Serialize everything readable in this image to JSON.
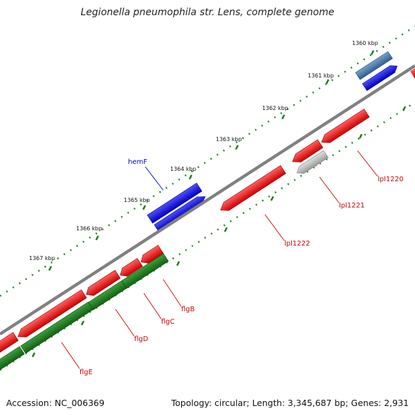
{
  "title": "Legionella pneumophila str. Lens, complete genome",
  "footer": {
    "accession": "Accession: NC_006369",
    "summary": "Topology: circular; Length: 3,345,687 bp; Genes: 2,931"
  },
  "colors": {
    "backbone": "#808080",
    "plus_gene": "#0000ee",
    "plus_gene_alt": "#4a7aa8",
    "minus_gene": "#ee0000",
    "minus_gene_alt": "#bdbdbd",
    "operon_gene": "#228b22",
    "tick_dots": "#228b22",
    "label_red": "#cc0000",
    "label_blue": "#0000cc"
  },
  "ticks": [
    {
      "label": "1360 kbp"
    },
    {
      "label": "1361 kbp"
    },
    {
      "label": "1362 kbp"
    },
    {
      "label": "1363 kbp"
    },
    {
      "label": "1364 kbp"
    },
    {
      "label": "1365 kbp"
    },
    {
      "label": "1366 kbp"
    },
    {
      "label": "1367 kbp"
    }
  ],
  "gene_labels": [
    {
      "name": "hemF"
    },
    {
      "name": "lpl1220"
    },
    {
      "name": "lpl1221"
    },
    {
      "name": "lpl1222"
    },
    {
      "name": "flgB"
    },
    {
      "name": "flgC"
    },
    {
      "name": "flgD"
    },
    {
      "name": "flgE"
    }
  ]
}
